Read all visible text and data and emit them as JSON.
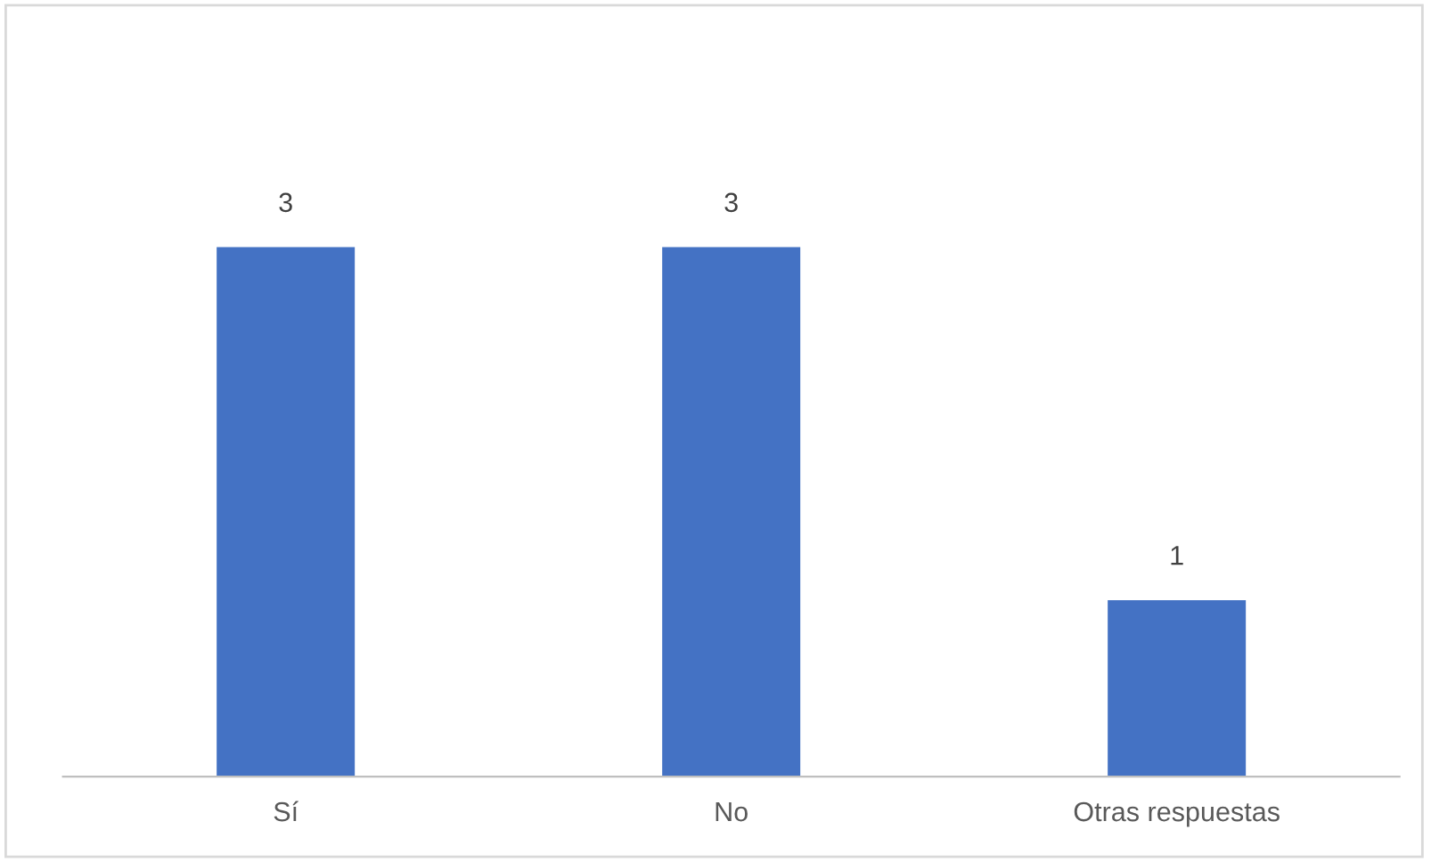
{
  "chart_data": {
    "type": "bar",
    "categories": [
      "Sí",
      "No",
      "Otras respuestas"
    ],
    "values": [
      3,
      3,
      1
    ],
    "color": "#4472c4",
    "data_labels": true,
    "grid": false,
    "legend": false
  }
}
